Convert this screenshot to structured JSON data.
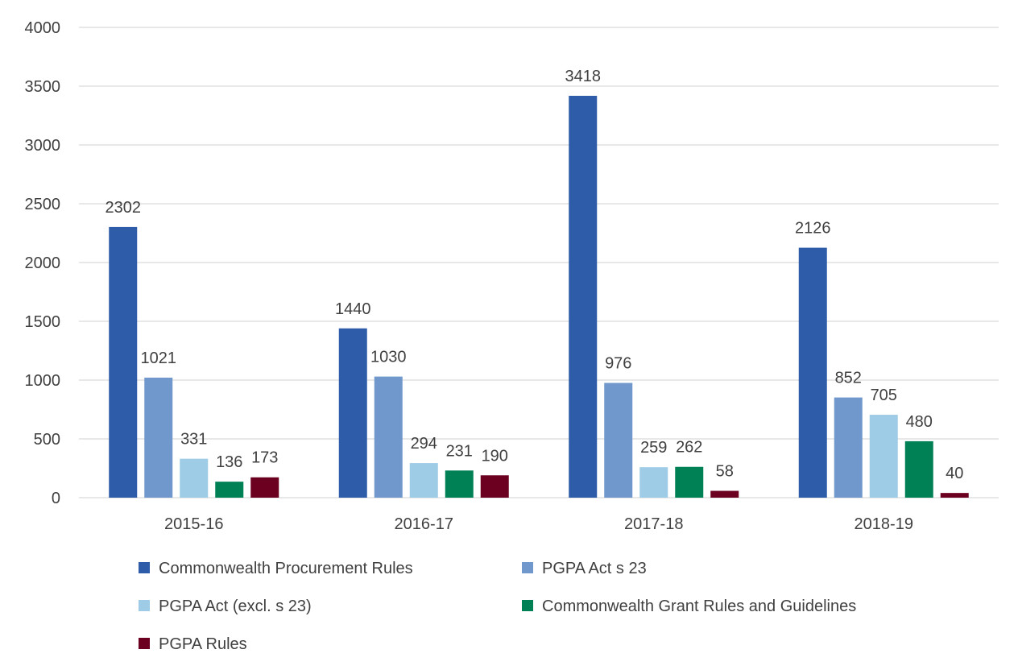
{
  "chart_data": {
    "type": "bar",
    "title": "",
    "xlabel": "",
    "ylabel": "",
    "ylim": [
      0,
      4000
    ],
    "yticks": [
      0,
      500,
      1000,
      1500,
      2000,
      2500,
      3000,
      3500,
      4000
    ],
    "grid": true,
    "legend_position": "bottom",
    "categories": [
      "2015-16",
      "2016-17",
      "2017-18",
      "2018-19"
    ],
    "series": [
      {
        "name": "Commonwealth Procurement Rules",
        "color": "#2e5ca8",
        "values": [
          2302,
          1440,
          3418,
          2126
        ]
      },
      {
        "name": "PGPA Act s 23",
        "color": "#7098cc",
        "values": [
          1021,
          1030,
          976,
          852
        ]
      },
      {
        "name": "PGPA Act (excl. s 23)",
        "color": "#9ecbe6",
        "values": [
          331,
          294,
          259,
          705
        ]
      },
      {
        "name": "Commonwealth Grant Rules and Guidelines",
        "color": "#008055",
        "values": [
          136,
          231,
          262,
          480
        ]
      },
      {
        "name": "PGPA Rules",
        "color": "#6b0020",
        "values": [
          173,
          190,
          58,
          40
        ]
      }
    ]
  }
}
